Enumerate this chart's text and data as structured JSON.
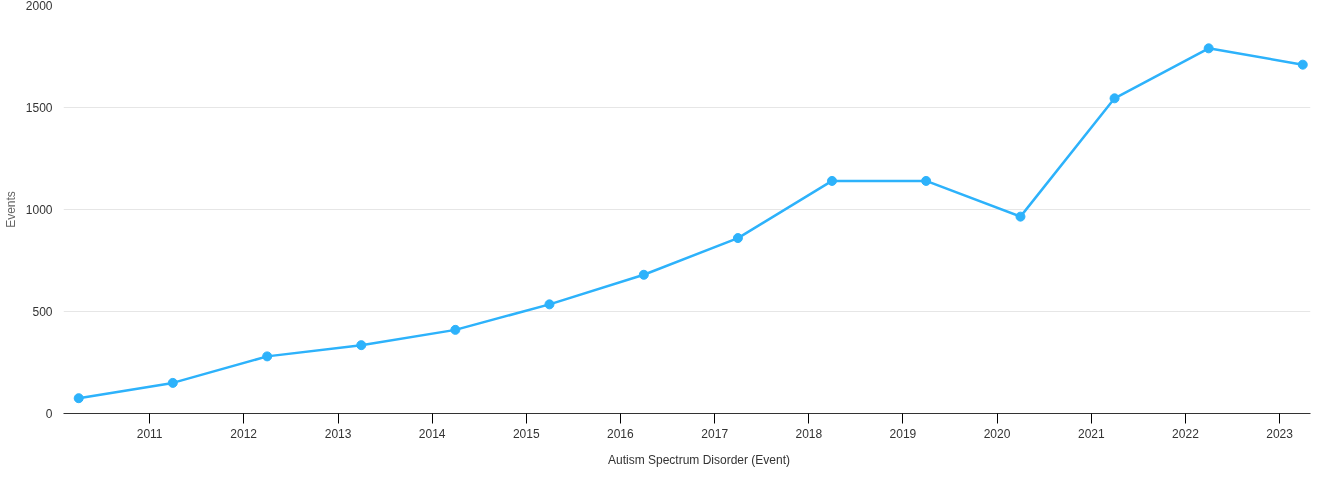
{
  "chart_data": {
    "type": "line",
    "ylabel": "Events",
    "x": [
      "2010-04",
      "2011-04",
      "2012-04",
      "2013-04",
      "2014-04",
      "2015-04",
      "2016-04",
      "2017-04",
      "2018-04",
      "2019-04",
      "2020-04",
      "2021-04",
      "2022-04",
      "2023-04"
    ],
    "series": [
      {
        "name": "Autism Spectrum Disorder (Event)",
        "color": "#2db2fb",
        "values": [
          75,
          150,
          280,
          335,
          410,
          535,
          680,
          860,
          1140,
          1140,
          965,
          1545,
          1790,
          1710
        ]
      }
    ],
    "xlim": [
      "2010-02",
      "2023-05"
    ],
    "xticks": [
      "2011",
      "2012",
      "2013",
      "2014",
      "2015",
      "2016",
      "2017",
      "2018",
      "2019",
      "2020",
      "2021",
      "2022",
      "2023"
    ],
    "ylim": [
      0,
      2000
    ],
    "yticks": [
      0,
      500,
      1000,
      1500,
      2000
    ],
    "grid": "y",
    "legend": "bottom",
    "marker": "circle",
    "line_style": "solid"
  }
}
